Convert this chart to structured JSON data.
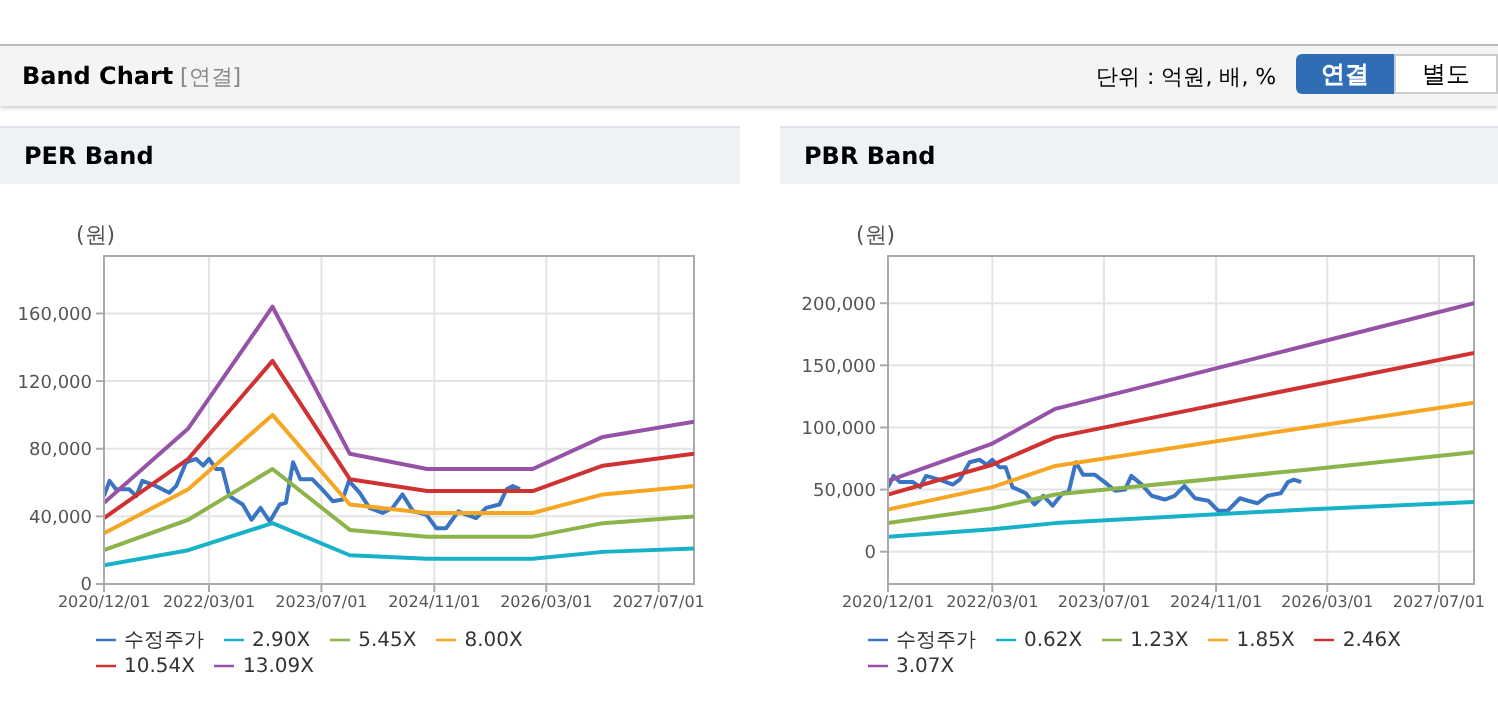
{
  "chart_data": [
    {
      "type": "line",
      "title": "PER Band",
      "ylabel": "(원)",
      "annotations": [
        "Band Chart",
        "[연결]",
        "단위 : 억원, 배, %",
        "연결",
        "별도"
      ],
      "x": [
        "2020-12-01",
        "2021-12-01",
        "2022-12-01",
        "2023-11-01",
        "2024-10-01",
        "2026-01-01",
        "2026-11-01",
        "2027-12-01"
      ],
      "xlim": [
        "2020-12-01",
        "2027-12-01"
      ],
      "xticks": [
        {
          "value": "2020-12-01",
          "label": "2020/12/01"
        },
        {
          "value": "2022-03-01",
          "label": "2022/03/01"
        },
        {
          "value": "2023-07-01",
          "label": "2023/07/01"
        },
        {
          "value": "2024-11-01",
          "label": "2024/11/01"
        },
        {
          "value": "2026-03-01",
          "label": "2026/03/01"
        },
        {
          "value": "2027-07-01",
          "label": "2027/07/01"
        }
      ],
      "ylim": [
        0,
        194000
      ],
      "yticks": [
        0,
        {
          "value": 40000,
          "label": "40,000"
        },
        {
          "value": 80000,
          "label": "80,000"
        },
        {
          "value": 120000,
          "label": "120,000"
        },
        {
          "value": 160000,
          "label": "160,000"
        }
      ],
      "grid": true,
      "legend": "bottom",
      "marker": "none",
      "series": [
        {
          "name": "수정주가",
          "color": "#3a75c4",
          "x": [
            "2020-12-01",
            "2020-12-25",
            "2021-01-22",
            "2021-03-20",
            "2021-04-20",
            "2021-05-16",
            "2021-07-13",
            "2021-09-10",
            "2021-10-10",
            "2021-11-22",
            "2022-01-04",
            "2022-02-04",
            "2022-03-01",
            "2022-04-01",
            "2022-04-28",
            "2022-05-28",
            "2022-07-25",
            "2022-09-01",
            "2022-10-10",
            "2022-11-19",
            "2023-01-01",
            "2023-01-28",
            "2023-02-28",
            "2023-04-01",
            "2023-05-22",
            "2023-07-04",
            "2023-08-19",
            "2023-10-01",
            "2023-10-28",
            "2023-12-13",
            "2024-01-25",
            "2024-03-22",
            "2024-05-04",
            "2024-06-16",
            "2024-08-01",
            "2024-09-28",
            "2024-11-10",
            "2024-12-22",
            "2025-02-13",
            "2025-03-20",
            "2025-05-01",
            "2025-06-13",
            "2025-08-10",
            "2025-09-10",
            "2025-10-07",
            "2025-11-07"
          ],
          "values": [
            52000,
            61000,
            56000,
            56000,
            52000,
            61000,
            58000,
            54000,
            58000,
            72000,
            74000,
            70000,
            74000,
            68000,
            68000,
            52000,
            47000,
            38000,
            45000,
            37000,
            47000,
            48000,
            72000,
            62000,
            62000,
            56000,
            49000,
            50000,
            61000,
            54000,
            45000,
            42000,
            45000,
            53000,
            43000,
            41000,
            33000,
            33000,
            43000,
            41000,
            39000,
            45000,
            47000,
            56000,
            58000,
            56000
          ]
        },
        {
          "name": "2.90X",
          "color": "#17b2c8",
          "values": [
            11000,
            20000,
            36000,
            17000,
            15000,
            15000,
            19000,
            21000
          ]
        },
        {
          "name": "5.45X",
          "color": "#8cb44a",
          "values": [
            20000,
            38000,
            68000,
            32000,
            28000,
            28000,
            36000,
            40000
          ]
        },
        {
          "name": "8.00X",
          "color": "#f5a623",
          "values": [
            30000,
            56000,
            100000,
            47000,
            42000,
            42000,
            53000,
            58000
          ]
        },
        {
          "name": "10.54X",
          "color": "#d03232",
          "values": [
            39000,
            74000,
            132000,
            62000,
            55000,
            55000,
            70000,
            77000
          ]
        },
        {
          "name": "13.09X",
          "color": "#9552a6",
          "values": [
            48000,
            92000,
            164000,
            77000,
            68000,
            68000,
            87000,
            96000
          ]
        }
      ]
    },
    {
      "type": "line",
      "title": "PBR Band",
      "ylabel": "(원)",
      "x": [
        "2020-12-01",
        "2022-03-01",
        "2022-12-01",
        "2025-12-01",
        "2027-12-01"
      ],
      "xlim": [
        "2020-12-01",
        "2027-12-01"
      ],
      "xticks": [
        {
          "value": "2020-12-01",
          "label": "2020/12/01"
        },
        {
          "value": "2022-03-01",
          "label": "2022/03/01"
        },
        {
          "value": "2023-07-01",
          "label": "2023/07/01"
        },
        {
          "value": "2024-11-01",
          "label": "2024/11/01"
        },
        {
          "value": "2026-03-01",
          "label": "2026/03/01"
        },
        {
          "value": "2027-07-01",
          "label": "2027/07/01"
        }
      ],
      "ylim": [
        -26000,
        238000
      ],
      "yticks": [
        0,
        {
          "value": 50000,
          "label": "50,000"
        },
        {
          "value": 100000,
          "label": "100,000"
        },
        {
          "value": 150000,
          "label": "150,000"
        },
        {
          "value": 200000,
          "label": "200,000"
        }
      ],
      "grid": true,
      "legend": "bottom",
      "marker": "none",
      "series": [
        {
          "name": "수정주가",
          "color": "#3a75c4",
          "x": [
            "2020-12-01",
            "2020-12-25",
            "2021-01-22",
            "2021-03-20",
            "2021-04-20",
            "2021-05-16",
            "2021-07-13",
            "2021-09-10",
            "2021-10-10",
            "2021-11-22",
            "2022-01-04",
            "2022-02-04",
            "2022-03-01",
            "2022-04-01",
            "2022-04-28",
            "2022-05-28",
            "2022-07-25",
            "2022-09-01",
            "2022-10-10",
            "2022-11-19",
            "2023-01-01",
            "2023-01-28",
            "2023-02-28",
            "2023-04-01",
            "2023-05-22",
            "2023-07-04",
            "2023-08-19",
            "2023-10-01",
            "2023-10-28",
            "2023-12-13",
            "2024-01-25",
            "2024-03-22",
            "2024-05-04",
            "2024-06-16",
            "2024-08-01",
            "2024-09-28",
            "2024-11-10",
            "2024-12-22",
            "2025-02-13",
            "2025-03-20",
            "2025-05-01",
            "2025-06-13",
            "2025-08-10",
            "2025-09-10",
            "2025-10-07",
            "2025-11-07"
          ],
          "values": [
            52000,
            61000,
            56000,
            56000,
            52000,
            61000,
            58000,
            54000,
            58000,
            72000,
            74000,
            70000,
            74000,
            68000,
            68000,
            52000,
            47000,
            38000,
            45000,
            37000,
            47000,
            48000,
            72000,
            62000,
            62000,
            56000,
            49000,
            50000,
            61000,
            54000,
            45000,
            42000,
            45000,
            53000,
            43000,
            41000,
            33000,
            33000,
            43000,
            41000,
            39000,
            45000,
            47000,
            56000,
            58000,
            56000
          ]
        },
        {
          "name": "0.62X",
          "color": "#17b2c8",
          "values": [
            12000,
            18000,
            23000,
            34000,
            40000
          ]
        },
        {
          "name": "1.23X",
          "color": "#8cb44a",
          "values": [
            23000,
            35000,
            46000,
            66000,
            80000
          ]
        },
        {
          "name": "1.85X",
          "color": "#f5a623",
          "values": [
            34000,
            52000,
            69000,
            100000,
            120000
          ]
        },
        {
          "name": "2.46X",
          "color": "#d03232",
          "values": [
            46000,
            70000,
            92000,
            133000,
            160000
          ]
        },
        {
          "name": "3.07X",
          "color": "#9552a6",
          "values": [
            57000,
            87000,
            115000,
            166000,
            200000
          ]
        }
      ]
    }
  ]
}
